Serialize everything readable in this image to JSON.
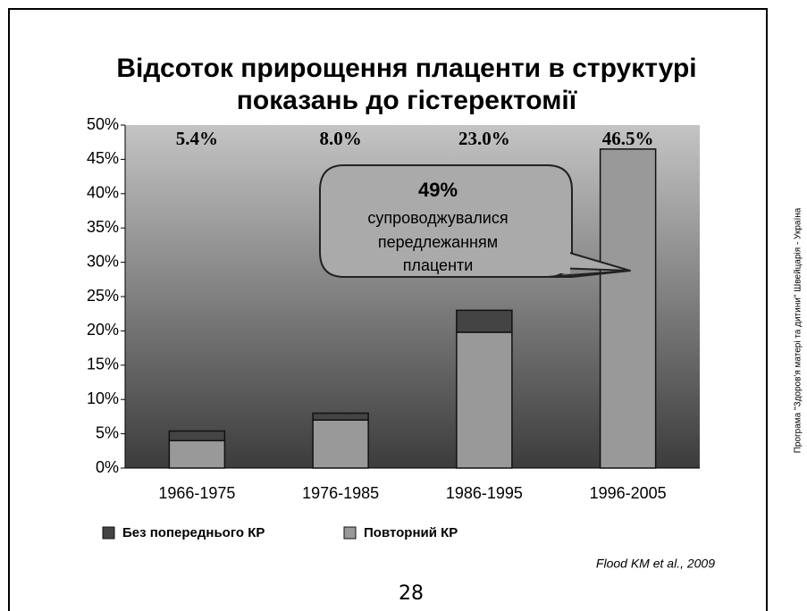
{
  "chart_data": {
    "type": "stacked_bar",
    "title": [
      "Відсоток прирощення плаценти в структурі",
      "показань до гістеректомії"
    ],
    "categories": [
      "1966-1975",
      "1976-1985",
      "1986-1995",
      "1996-2005"
    ],
    "series": [
      {
        "name": "Без попереднього КР",
        "color": "#444444",
        "values": [
          1.4,
          1.0,
          3.2,
          0
        ]
      },
      {
        "name": "Повторний КР",
        "color": "#999999",
        "values": [
          4.0,
          7.0,
          19.8,
          46.5
        ]
      }
    ],
    "totals": [
      5.4,
      8.0,
      23.0,
      46.5
    ],
    "total_labels": [
      "5.4%",
      "8.0%",
      "23.0%",
      "46.5%"
    ],
    "ylim": [
      0,
      50
    ],
    "yticks": [
      {
        "value": 0,
        "label": "0%"
      },
      {
        "value": 5,
        "label": "5%"
      },
      {
        "value": 10,
        "label": "10%"
      },
      {
        "value": 15,
        "label": "15%"
      },
      {
        "value": 20,
        "label": "20%"
      },
      {
        "value": 25,
        "label": "25%"
      },
      {
        "value": 30,
        "label": "30%"
      },
      {
        "value": 35,
        "label": "35%"
      },
      {
        "value": 40,
        "label": "40%"
      },
      {
        "value": 45,
        "label": "45%"
      },
      {
        "value": 50,
        "label": "50%"
      }
    ],
    "annotation": {
      "headline": "49%",
      "lines": [
        "супроводжувалися",
        "передлежанням",
        "плаценти"
      ]
    },
    "source": "Flood KM et al., 2009",
    "legend": "bottom"
  },
  "page_number": "28",
  "side_note": "Програма \"Здоров'я матері та дитини\" Швейцарія - Україна"
}
